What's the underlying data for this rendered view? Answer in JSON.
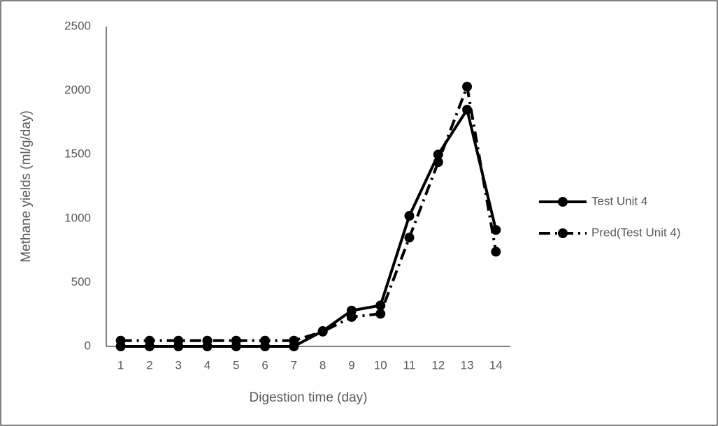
{
  "chart_data": {
    "type": "line",
    "x_label": "Digestion time (day)",
    "y_label": "Methane yields (ml/g/day)",
    "categories": [
      "1",
      "2",
      "3",
      "4",
      "5",
      "6",
      "7",
      "8",
      "9",
      "10",
      "11",
      "12",
      "13",
      "14"
    ],
    "series": [
      {
        "name": "Test Unit 4",
        "color": "#000000",
        "dash": "solid",
        "values": [
          0,
          0,
          0,
          0,
          0,
          0,
          0,
          120,
          280,
          320,
          1020,
          1500,
          1850,
          910
        ]
      },
      {
        "name": "Pred(Test Unit 4)",
        "color": "#000000",
        "dash": "dashdot",
        "values": [
          45,
          45,
          45,
          45,
          45,
          45,
          45,
          115,
          230,
          255,
          850,
          1440,
          2030,
          740
        ]
      }
    ],
    "ylim": [
      0,
      2500
    ],
    "yticks": [
      0,
      500,
      1000,
      1500,
      2000,
      2500
    ],
    "grid": false,
    "legend": "right"
  }
}
